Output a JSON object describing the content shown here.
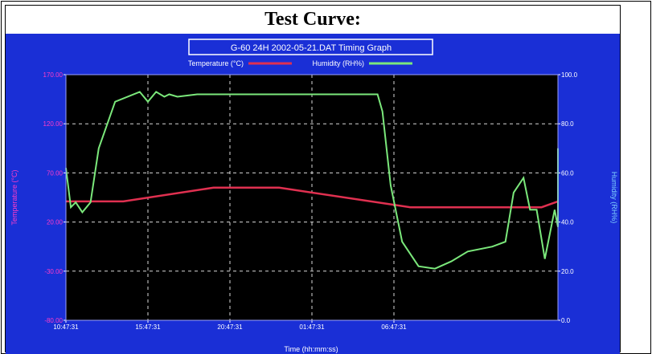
{
  "page": {
    "heading": "Test Curve:"
  },
  "chart_data": {
    "type": "line",
    "title": "G-60 24H 2002-05-21.DAT Timing Graph",
    "xlabel": "Time (hh:mm:ss)",
    "ylabel_left": "Temperature (°C)",
    "ylabel_right": "Humidity (RH%)",
    "ylim_left": [
      -80,
      170
    ],
    "ylim_right": [
      0,
      100
    ],
    "y_ticks_left": [
      "170.00",
      "120.00",
      "70.00",
      "20.00",
      "-30.00",
      "-80.00"
    ],
    "y_ticks_right": [
      "100.0",
      "80.0",
      "60.0",
      "40.0",
      "20.0",
      "0.0"
    ],
    "x_ticks": [
      "10:47:31",
      "15:47:31",
      "20:47:31",
      "01:47:31",
      "06:47:31"
    ],
    "x_range_hours": [
      0,
      30
    ],
    "grid": true,
    "legend_position": "top-center",
    "colors": {
      "background": "#1a2fd6",
      "plot": "#000000",
      "temperature": "#e03050",
      "humidity": "#7be87b",
      "left_axis_text": "#ff3cc8",
      "right_axis_text": "#7fd0ff",
      "grid": "#d8d8d8"
    },
    "series": [
      {
        "name": "Temperature (°C)",
        "axis": "left",
        "color": "#e03050",
        "x": [
          0,
          3.5,
          9,
          13,
          21,
          29,
          34
        ],
        "y": [
          41,
          41,
          55,
          55,
          35,
          35,
          41
        ]
      },
      {
        "name": "Humidity (RH%)",
        "axis": "right",
        "color": "#7be87b",
        "x": [
          0,
          0.3,
          0.6,
          1.0,
          1.5,
          2.0,
          3.0,
          4.5,
          5.0,
          5.5,
          6.0,
          6.3,
          6.8,
          8.0,
          12.0,
          15.0,
          19.0,
          19.3,
          19.8,
          20.5,
          21.5,
          22.5,
          23.5,
          24.5,
          26.0,
          26.8,
          27.3,
          27.9,
          28.3,
          28.7,
          29.2,
          29.8,
          30.2,
          30.7,
          31.2,
          31.8,
          32.5,
          33.5,
          34.5
        ],
        "y": [
          62,
          46,
          48,
          44,
          48,
          70,
          89,
          93,
          89,
          93,
          91,
          92,
          91,
          92,
          92,
          92,
          92,
          85,
          55,
          32,
          22,
          21,
          24,
          28,
          30,
          32,
          52,
          58,
          45,
          45,
          25,
          45,
          38,
          42,
          58,
          70,
          66,
          48,
          48
        ]
      }
    ]
  }
}
